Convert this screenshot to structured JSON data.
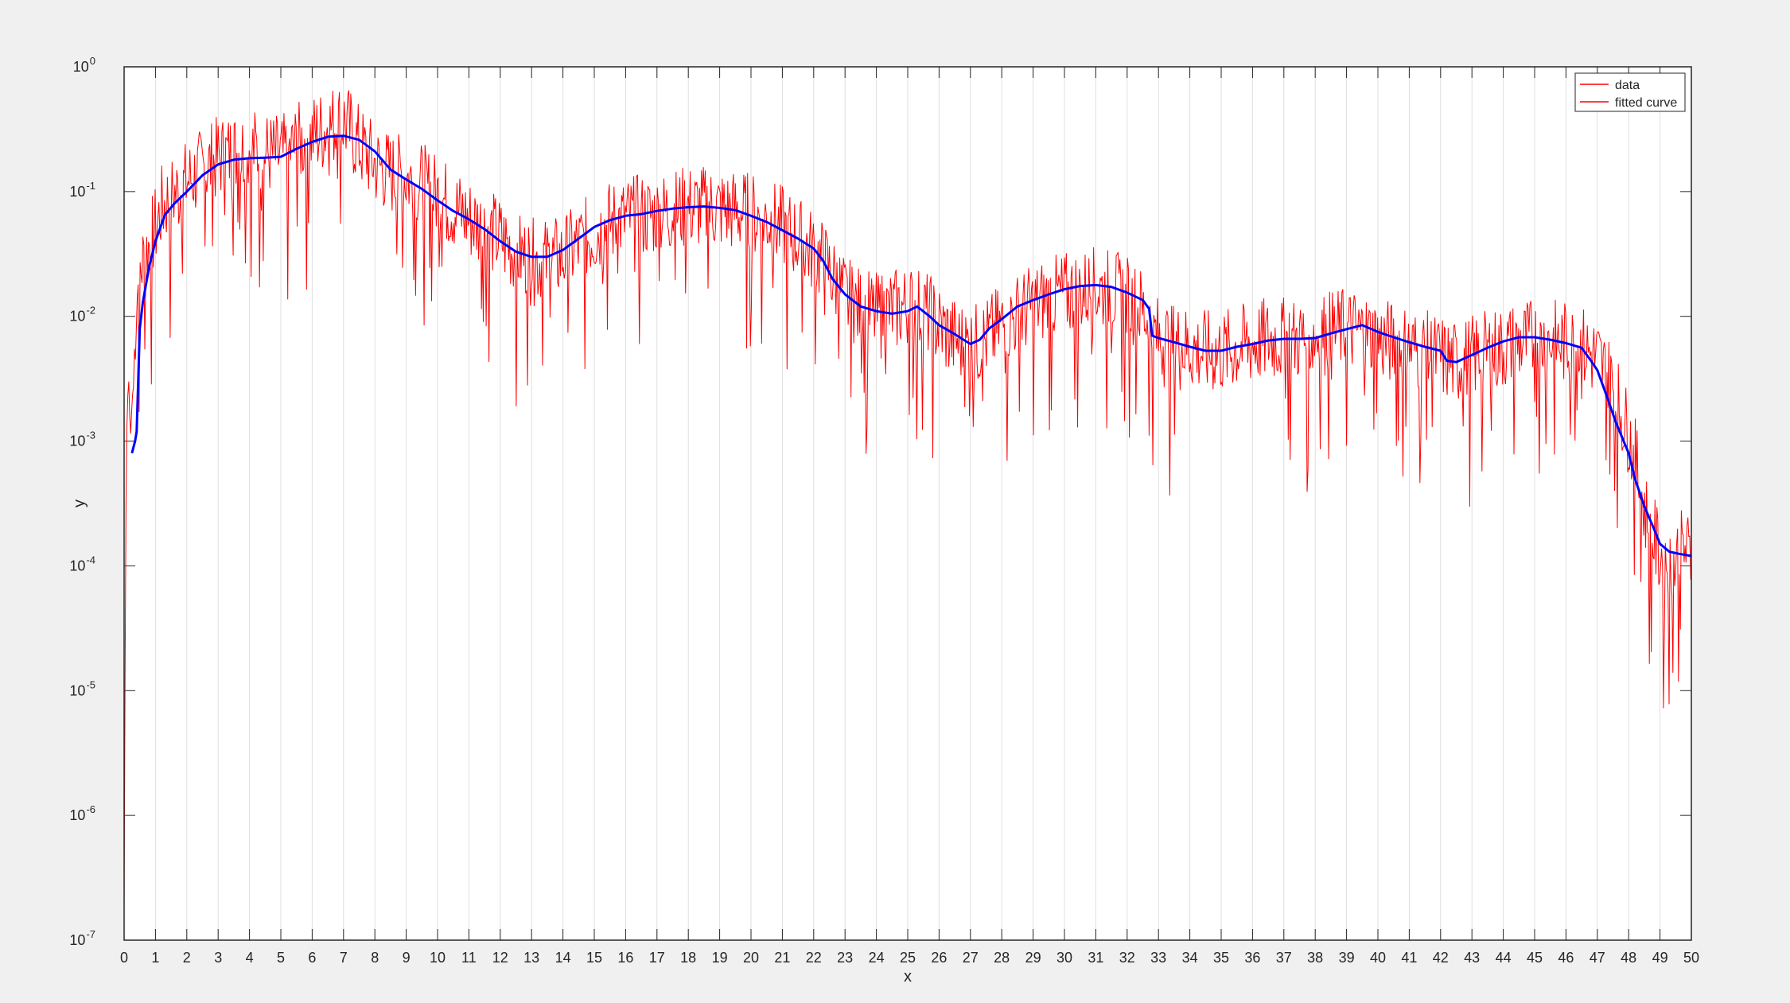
{
  "chart_data": {
    "type": "line",
    "title": "",
    "xlabel": "x",
    "ylabel": "y",
    "xlim": [
      0,
      50
    ],
    "ylim": [
      1e-07,
      1
    ],
    "yscale": "log",
    "grid": {
      "x": true,
      "y": false
    },
    "legend_location": "top-right",
    "x_ticks": [
      "0",
      "1",
      "2",
      "3",
      "4",
      "5",
      "6",
      "7",
      "8",
      "9",
      "10",
      "11",
      "12",
      "13",
      "14",
      "15",
      "16",
      "17",
      "18",
      "19",
      "20",
      "21",
      "22",
      "23",
      "24",
      "25",
      "26",
      "27",
      "28",
      "29",
      "30",
      "31",
      "32",
      "33",
      "34",
      "35",
      "36",
      "37",
      "38",
      "39",
      "40",
      "41",
      "42",
      "43",
      "44",
      "45",
      "46",
      "47",
      "48",
      "49",
      "50"
    ],
    "y_ticks": [
      {
        "base": "10",
        "exp": "-7",
        "value": 1e-07
      },
      {
        "base": "10",
        "exp": "-6",
        "value": 1e-06
      },
      {
        "base": "10",
        "exp": "-5",
        "value": 1e-05
      },
      {
        "base": "10",
        "exp": "-4",
        "value": 0.0001
      },
      {
        "base": "10",
        "exp": "-3",
        "value": 0.001
      },
      {
        "base": "10",
        "exp": "-2",
        "value": 0.01
      },
      {
        "base": "10",
        "exp": "-1",
        "value": 0.1
      },
      {
        "base": "10",
        "exp": "0",
        "value": 1
      }
    ],
    "series": [
      {
        "name": "data",
        "color": "#ff0000",
        "style": "noisy-line",
        "x": [
          0.0,
          0.05,
          0.1,
          0.15,
          0.2,
          0.25,
          0.3,
          0.35,
          0.4,
          0.5,
          0.6,
          0.8,
          1.0,
          1.2,
          1.5,
          1.8,
          2.0,
          2.5,
          3.0,
          3.5,
          4.0,
          4.5,
          5.0,
          5.5,
          6.0,
          6.5,
          7.0,
          7.5,
          8.0,
          8.5,
          9.0,
          9.5,
          10.0,
          10.5,
          11.0,
          11.5,
          12.0,
          12.5,
          13.0,
          13.5,
          14.0,
          14.5,
          15.0,
          15.5,
          16.0,
          16.5,
          17.0,
          17.5,
          18.0,
          18.5,
          19.0,
          19.5,
          20.0,
          20.5,
          21.0,
          21.5,
          22.0,
          22.5,
          23.0,
          23.5,
          24.0,
          24.5,
          25.0,
          25.5,
          26.0,
          26.5,
          27.0,
          27.5,
          28.0,
          28.5,
          29.0,
          29.5,
          30.0,
          30.5,
          31.0,
          31.5,
          32.0,
          32.5,
          33.0,
          33.5,
          34.0,
          34.5,
          35.0,
          35.5,
          36.0,
          36.5,
          37.0,
          37.5,
          38.0,
          38.5,
          39.0,
          39.5,
          40.0,
          40.5,
          41.0,
          41.5,
          42.0,
          42.5,
          43.0,
          43.5,
          44.0,
          44.5,
          45.0,
          45.5,
          46.0,
          46.5,
          47.0,
          47.5,
          48.0,
          48.3,
          48.5,
          48.8,
          49.0,
          49.3,
          49.5,
          49.8,
          50.0
        ],
        "y": [
          2e-07,
          0.0002,
          0.002,
          0.003,
          0.001,
          0.002,
          0.003,
          0.008,
          0.015,
          0.025,
          0.03,
          0.04,
          0.055,
          0.08,
          0.1,
          0.11,
          0.13,
          0.16,
          0.2,
          0.22,
          0.24,
          0.22,
          0.2,
          0.25,
          0.3,
          0.35,
          0.4,
          0.25,
          0.18,
          0.15,
          0.14,
          0.12,
          0.1,
          0.08,
          0.065,
          0.055,
          0.045,
          0.035,
          0.03,
          0.03,
          0.032,
          0.04,
          0.05,
          0.06,
          0.065,
          0.068,
          0.07,
          0.075,
          0.08,
          0.08,
          0.078,
          0.075,
          0.07,
          0.065,
          0.055,
          0.045,
          0.035,
          0.025,
          0.015,
          0.012,
          0.011,
          0.012,
          0.013,
          0.012,
          0.009,
          0.007,
          0.006,
          0.007,
          0.009,
          0.011,
          0.013,
          0.015,
          0.016,
          0.017,
          0.018,
          0.017,
          0.015,
          0.012,
          0.007,
          0.0065,
          0.006,
          0.0055,
          0.0055,
          0.006,
          0.0065,
          0.007,
          0.007,
          0.007,
          0.0075,
          0.008,
          0.0085,
          0.008,
          0.007,
          0.0065,
          0.006,
          0.0055,
          0.005,
          0.0045,
          0.005,
          0.0055,
          0.006,
          0.0065,
          0.007,
          0.0068,
          0.0065,
          0.006,
          0.005,
          0.003,
          0.0012,
          0.0006,
          0.0003,
          0.00018,
          0.00013,
          0.00011,
          0.00012,
          0.00015,
          0.00012
        ]
      },
      {
        "name": "fitted curve",
        "color": "#0000ff",
        "style": "smooth-line",
        "x": [
          0.25,
          0.35,
          0.4,
          0.45,
          0.5,
          0.6,
          0.8,
          1.0,
          1.3,
          1.6,
          2.0,
          2.5,
          3.0,
          3.5,
          4.0,
          4.5,
          5.0,
          5.5,
          6.0,
          6.5,
          7.0,
          7.5,
          8.0,
          8.5,
          9.0,
          9.5,
          10.0,
          10.5,
          11.0,
          11.5,
          12.0,
          12.5,
          13.0,
          13.5,
          14.0,
          14.5,
          15.0,
          15.5,
          16.0,
          16.5,
          17.0,
          17.5,
          18.0,
          18.5,
          19.0,
          19.5,
          20.0,
          20.5,
          21.0,
          21.5,
          22.0,
          22.3,
          22.6,
          23.0,
          23.5,
          24.0,
          24.5,
          25.0,
          25.3,
          25.7,
          26.0,
          26.5,
          27.0,
          27.3,
          27.6,
          28.0,
          28.5,
          29.0,
          29.5,
          30.0,
          30.5,
          31.0,
          31.5,
          32.0,
          32.5,
          32.7,
          32.8,
          33.0,
          33.5,
          34.0,
          34.5,
          35.0,
          35.5,
          36.0,
          36.5,
          37.0,
          37.5,
          38.0,
          38.5,
          39.0,
          39.5,
          40.0,
          40.5,
          41.0,
          41.5,
          42.0,
          42.2,
          42.5,
          43.0,
          43.5,
          44.0,
          44.5,
          45.0,
          45.5,
          46.0,
          46.5,
          46.8,
          47.0,
          47.3,
          47.6,
          48.0,
          48.2,
          48.5,
          48.8,
          49.0,
          49.3,
          49.6,
          50.0
        ],
        "y": [
          0.0008,
          0.001,
          0.0012,
          0.003,
          0.008,
          0.013,
          0.025,
          0.04,
          0.065,
          0.08,
          0.1,
          0.135,
          0.165,
          0.18,
          0.185,
          0.187,
          0.19,
          0.22,
          0.25,
          0.275,
          0.28,
          0.26,
          0.21,
          0.15,
          0.125,
          0.105,
          0.085,
          0.07,
          0.06,
          0.05,
          0.04,
          0.033,
          0.03,
          0.03,
          0.034,
          0.042,
          0.052,
          0.059,
          0.064,
          0.066,
          0.07,
          0.073,
          0.075,
          0.076,
          0.074,
          0.071,
          0.064,
          0.057,
          0.049,
          0.042,
          0.035,
          0.028,
          0.02,
          0.015,
          0.012,
          0.011,
          0.0105,
          0.011,
          0.012,
          0.01,
          0.0085,
          0.0072,
          0.006,
          0.0065,
          0.008,
          0.0095,
          0.012,
          0.0135,
          0.015,
          0.0165,
          0.0175,
          0.0178,
          0.0172,
          0.0155,
          0.0135,
          0.0115,
          0.007,
          0.0067,
          0.0062,
          0.0057,
          0.0053,
          0.0053,
          0.0057,
          0.006,
          0.0064,
          0.0066,
          0.0066,
          0.0067,
          0.0073,
          0.0079,
          0.0085,
          0.0075,
          0.0068,
          0.0062,
          0.0057,
          0.0053,
          0.0044,
          0.0043,
          0.0049,
          0.0056,
          0.0063,
          0.0068,
          0.0068,
          0.0065,
          0.0061,
          0.0056,
          0.0044,
          0.0037,
          0.0023,
          0.0014,
          0.0008,
          0.0005,
          0.0003,
          0.0002,
          0.00015,
          0.00013,
          0.000125,
          0.00012
        ]
      }
    ]
  }
}
